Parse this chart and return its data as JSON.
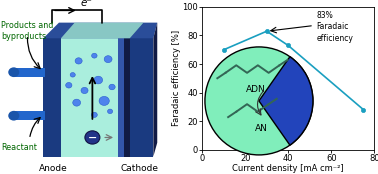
{
  "x_data": [
    10,
    30,
    40,
    75
  ],
  "y_data": [
    70,
    83,
    73,
    28
  ],
  "xlabel": "Current density [mA cm⁻²]",
  "ylabel": "Faradaic efficiency [%]",
  "xlim": [
    0,
    80
  ],
  "ylim": [
    0,
    100
  ],
  "xticks": [
    0,
    20,
    40,
    60,
    80
  ],
  "yticks": [
    0,
    20,
    40,
    60,
    80,
    100
  ],
  "annotation_text": "83%\nFaradaic\nefficiency",
  "line_color": "#1a9fc0",
  "marker_color": "#1a9fc0",
  "cell_blue_dark": "#1a3a80",
  "cell_blue_mid": "#2255aa",
  "cell_aqua": "#aaeedd",
  "cell_aqua_top": "#88ddcc",
  "bubble_color": "#4477ee",
  "bubble_edge": "#2255cc",
  "pipe_color": "#2266cc",
  "anode_label": "Anode",
  "cathode_label": "Cathode",
  "reactant_label": "Reactant",
  "products_label": "Products and\nbyproducts",
  "electron_label": "e⁻",
  "ADN_label": "ADN",
  "AN_label": "AN",
  "label_color": "#006600",
  "inset_green": "#80eebb",
  "inset_blue": "#2244bb",
  "mol_color": "#336655"
}
